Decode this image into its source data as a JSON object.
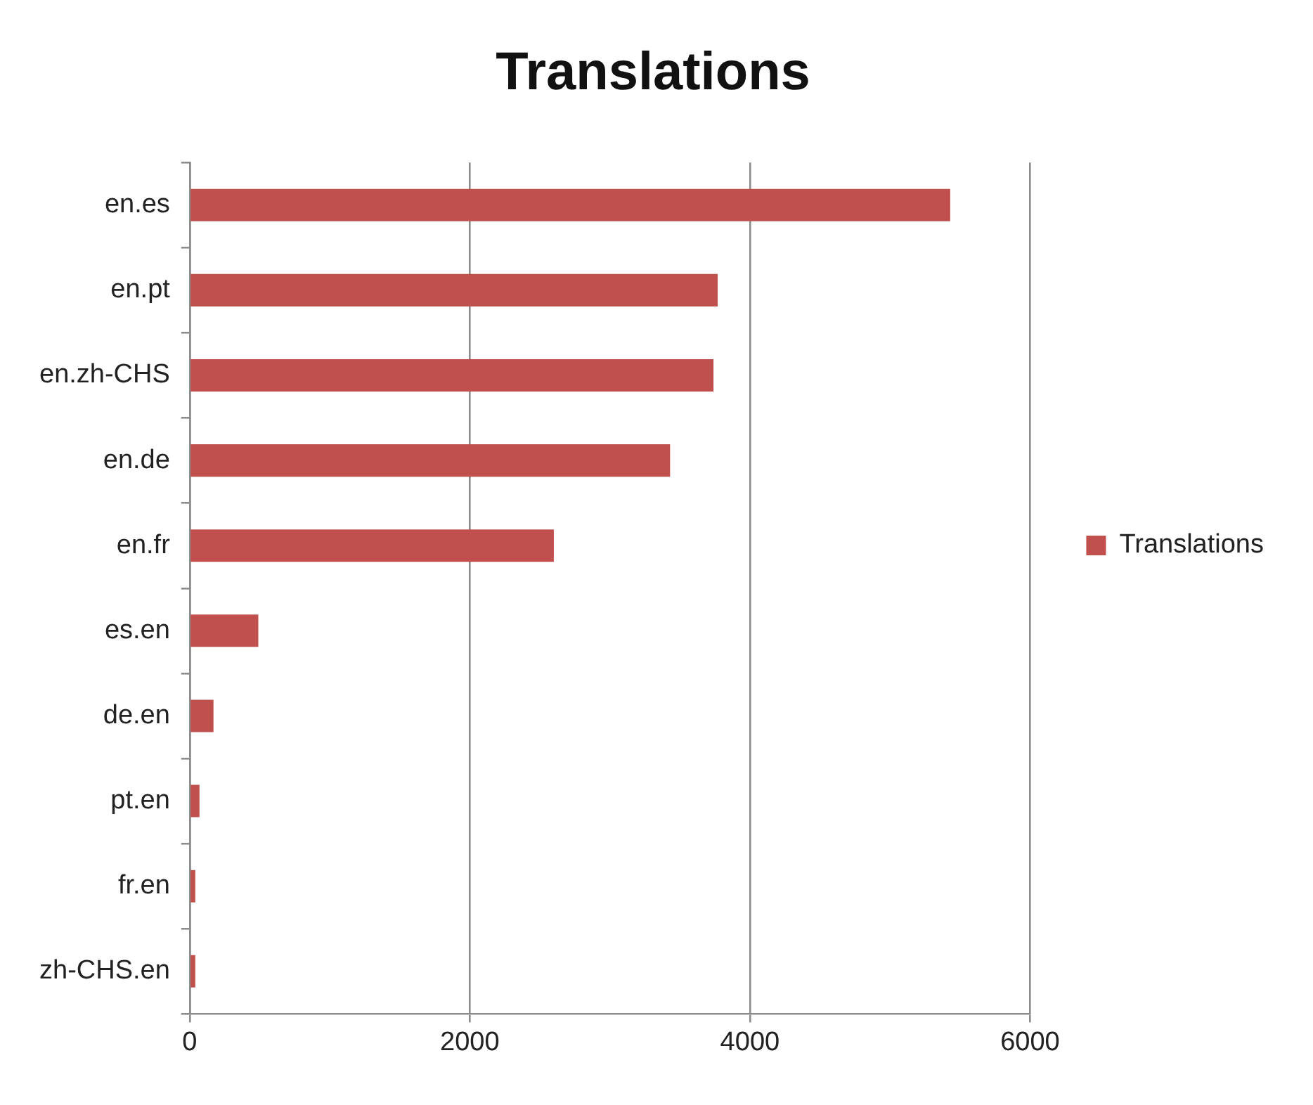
{
  "chart_data": {
    "type": "bar",
    "orientation": "horizontal",
    "title": "Translations",
    "categories": [
      "en.es",
      "en.pt",
      "en.zh-CHS",
      "en.de",
      "en.fr",
      "es.en",
      "de.en",
      "pt.en",
      "fr.en",
      "zh-CHS.en"
    ],
    "series": [
      {
        "name": "Translations",
        "color": "#c0504d",
        "values": [
          5430,
          3770,
          3740,
          3430,
          2600,
          490,
          170,
          70,
          40,
          40
        ]
      }
    ],
    "xlim": [
      0,
      6000
    ],
    "xticks": [
      0,
      2000,
      4000,
      6000
    ],
    "grid": "x",
    "legend": "right"
  }
}
